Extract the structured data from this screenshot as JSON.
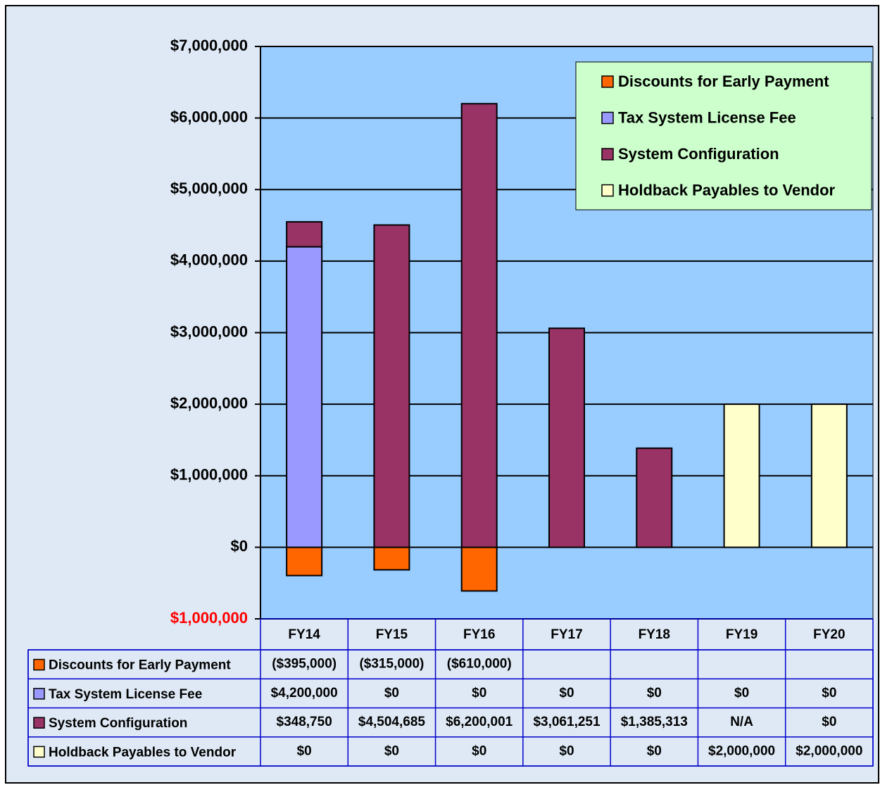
{
  "chart_data": {
    "type": "bar",
    "stacked": true,
    "categories": [
      "FY14",
      "FY15",
      "FY16",
      "FY17",
      "FY18",
      "FY19",
      "FY20"
    ],
    "series": [
      {
        "name": "Discounts for Early Payment",
        "color": "#ff6600",
        "values": [
          -395000,
          -315000,
          -610000,
          null,
          null,
          null,
          null
        ],
        "value_labels": [
          "($395,000)",
          "($315,000)",
          "($610,000)",
          null,
          null,
          null,
          null
        ]
      },
      {
        "name": "Tax System License Fee",
        "color": "#9999ff",
        "values": [
          4200000,
          0,
          0,
          0,
          0,
          0,
          0
        ],
        "value_labels": [
          "$4,200,000",
          "$0",
          "$0",
          "$0",
          "$0",
          "$0",
          "$0"
        ]
      },
      {
        "name": "System Configuration",
        "color": "#993366",
        "values": [
          348750,
          4504685,
          6200001,
          3061251,
          1385313,
          null,
          0
        ],
        "value_labels": [
          "$348,750",
          "$4,504,685",
          "$6,200,001",
          "$3,061,251",
          "$1,385,313",
          "N/A",
          "$0"
        ]
      },
      {
        "name": "Holdback Payables to Vendor",
        "color": "#ffffcc",
        "values": [
          0,
          0,
          0,
          0,
          0,
          2000000,
          2000000
        ],
        "value_labels": [
          "$0",
          "$0",
          "$0",
          "$0",
          "$0",
          "$2,000,000",
          "$2,000,000"
        ]
      }
    ],
    "ylim": [
      -1000000,
      7000000
    ],
    "yticks": [
      {
        "value": -1000000,
        "label": "$1,000,000"
      },
      {
        "value": 0,
        "label": "$0"
      },
      {
        "value": 1000000,
        "label": "$1,000,000"
      },
      {
        "value": 2000000,
        "label": "$2,000,000"
      },
      {
        "value": 3000000,
        "label": "$3,000,000"
      },
      {
        "value": 4000000,
        "label": "$4,000,000"
      },
      {
        "value": 5000000,
        "label": "$5,000,000"
      },
      {
        "value": 6000000,
        "label": "$6,000,000"
      },
      {
        "value": 7000000,
        "label": "$7,000,000"
      }
    ],
    "negative_tick_color": "#ff0000",
    "grid": true,
    "legend": "top-right",
    "plot_background": "#99ccff",
    "legend_background": "#ccffcc",
    "data_table": true
  }
}
